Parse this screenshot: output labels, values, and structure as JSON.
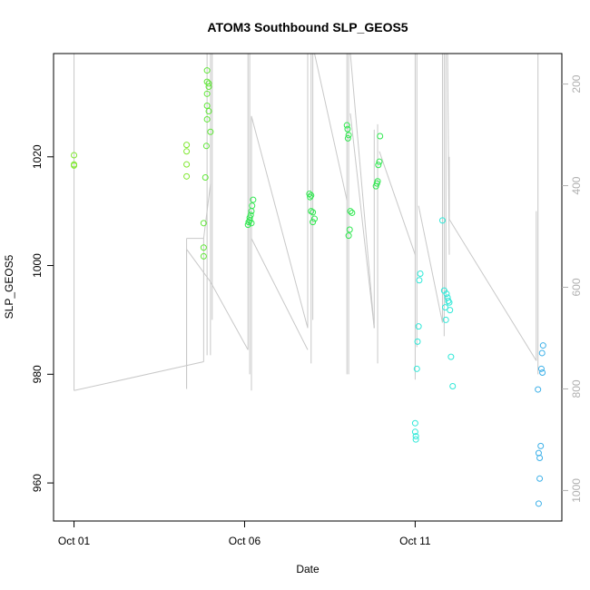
{
  "chart_data": {
    "type": "scatter",
    "title": "ATOM3 Southbound SLP_GEOS5",
    "xlabel": "Date",
    "ylabel": "SLP_GEOS5",
    "x_tick_labels": [
      "Oct 01",
      "Oct 06",
      "Oct 11"
    ],
    "x_tick_days": [
      1,
      6,
      11
    ],
    "xlim_days": [
      0.4,
      15.3
    ],
    "ylim": [
      953,
      1039
    ],
    "y_ticks": [
      960,
      980,
      1000,
      1020
    ],
    "secondary_axis": {
      "ticks": [
        200,
        400,
        600,
        800,
        1000
      ],
      "lim": [
        1060,
        140
      ],
      "color": "#b0b0b0"
    },
    "grid": false,
    "colors": {
      "altitude_trace": "#c8c8c8",
      "points_early": "#80e830",
      "points_mid": "#30e860",
      "points_late": "#30e8e8",
      "points_end": "#3cb0e8"
    },
    "series": [
      {
        "color": "#80e830",
        "points": [
          [
            1.0,
            1020.3
          ],
          [
            1.0,
            1018.6
          ],
          [
            1.0,
            1018.4
          ],
          [
            4.3,
            1022.2
          ],
          [
            4.3,
            1021.0
          ],
          [
            4.3,
            1018.6
          ],
          [
            4.3,
            1016.4
          ]
        ]
      },
      {
        "color": "#60e838",
        "points": [
          [
            4.8,
            1007.8
          ],
          [
            4.8,
            1003.3
          ],
          [
            4.8,
            1001.7
          ],
          [
            4.85,
            1016.2
          ],
          [
            4.9,
            1035.9
          ],
          [
            4.9,
            1033.8
          ],
          [
            4.95,
            1033.5
          ],
          [
            4.95,
            1032.9
          ],
          [
            4.9,
            1031.6
          ],
          [
            4.9,
            1029.4
          ],
          [
            4.95,
            1028.4
          ],
          [
            4.9,
            1026.9
          ],
          [
            5.0,
            1024.6
          ],
          [
            4.88,
            1022.0
          ]
        ]
      },
      {
        "color": "#30e850",
        "points": [
          [
            6.1,
            1007.5
          ],
          [
            6.12,
            1008.0
          ],
          [
            6.15,
            1008.8
          ],
          [
            6.18,
            1009.3
          ],
          [
            6.2,
            1010.0
          ],
          [
            6.22,
            1011.0
          ],
          [
            6.25,
            1012.1
          ],
          [
            6.2,
            1007.8
          ],
          [
            6.15,
            1008.3
          ],
          [
            7.9,
            1013.2
          ],
          [
            7.92,
            1012.6
          ],
          [
            7.95,
            1010.0
          ],
          [
            8.0,
            1009.8
          ],
          [
            8.05,
            1008.6
          ],
          [
            8.0,
            1008.0
          ],
          [
            7.95,
            1012.9
          ],
          [
            9.0,
            1025.8
          ],
          [
            9.02,
            1025.1
          ],
          [
            9.05,
            1024.0
          ],
          [
            9.03,
            1023.4
          ],
          [
            9.1,
            1010.0
          ],
          [
            9.15,
            1009.7
          ],
          [
            9.08,
            1006.6
          ],
          [
            9.05,
            1005.5
          ],
          [
            9.85,
            1014.6
          ],
          [
            9.88,
            1015.1
          ],
          [
            9.9,
            1015.5
          ],
          [
            9.92,
            1018.5
          ],
          [
            9.95,
            1019.1
          ],
          [
            9.97,
            1023.8
          ]
        ]
      },
      {
        "color": "#30e8d8",
        "points": [
          [
            11.0,
            971.0
          ],
          [
            11.0,
            969.4
          ],
          [
            11.02,
            968.6
          ],
          [
            11.02,
            968.0
          ],
          [
            11.05,
            981.0
          ],
          [
            11.07,
            986.0
          ],
          [
            11.1,
            988.8
          ],
          [
            11.12,
            997.3
          ],
          [
            11.15,
            998.5
          ],
          [
            11.8,
            1008.3
          ],
          [
            11.85,
            995.4
          ],
          [
            11.88,
            992.3
          ],
          [
            11.9,
            990.0
          ],
          [
            11.92,
            994.8
          ],
          [
            11.95,
            994.1
          ],
          [
            11.97,
            993.5
          ],
          [
            12.0,
            993.2
          ],
          [
            12.02,
            991.8
          ],
          [
            12.05,
            983.2
          ],
          [
            12.1,
            977.8
          ]
        ]
      },
      {
        "color": "#3cb0e8",
        "points": [
          [
            14.6,
            977.2
          ],
          [
            14.62,
            965.5
          ],
          [
            14.65,
            964.6
          ],
          [
            14.68,
            966.8
          ],
          [
            14.65,
            960.8
          ],
          [
            14.62,
            956.2
          ],
          [
            14.75,
            985.3
          ],
          [
            14.72,
            983.9
          ],
          [
            14.7,
            981.0
          ],
          [
            14.73,
            980.3
          ]
        ]
      }
    ],
    "trace_segments": [
      [
        [
          1.0,
          1039
        ],
        [
          1.0,
          977.0
        ]
      ],
      [
        [
          1.0,
          977.0
        ],
        [
          4.8,
          982.3
        ]
      ],
      [
        [
          4.8,
          982.3
        ],
        [
          4.8,
          1005.0
        ]
      ],
      [
        [
          4.8,
          1005.0
        ],
        [
          4.3,
          1005.0
        ]
      ],
      [
        [
          4.3,
          1005.0
        ],
        [
          4.3,
          977.3
        ]
      ],
      [
        [
          4.3,
          977.3
        ],
        [
          4.3,
          1003.0
        ]
      ],
      [
        [
          4.3,
          1003.0
        ],
        [
          5.0,
          997.0
        ]
      ],
      [
        [
          4.8,
          1005.0
        ],
        [
          5.0,
          1015.0
        ]
      ],
      [
        [
          4.9,
          983.5
        ],
        [
          4.9,
          1039
        ]
      ],
      [
        [
          5.0,
          983.5
        ],
        [
          5.0,
          1039
        ]
      ],
      [
        [
          5.05,
          990.0
        ],
        [
          5.05,
          1039
        ]
      ],
      [
        [
          5.0,
          997.0
        ],
        [
          6.1,
          984.5
        ]
      ],
      [
        [
          6.1,
          984.5
        ],
        [
          6.1,
          1039
        ]
      ],
      [
        [
          6.15,
          980.0
        ],
        [
          6.15,
          1039
        ]
      ],
      [
        [
          6.2,
          977.0
        ],
        [
          6.2,
          1027.5
        ]
      ],
      [
        [
          6.2,
          1027.5
        ],
        [
          7.85,
          988.5
        ]
      ],
      [
        [
          7.85,
          988.5
        ],
        [
          7.85,
          1039
        ]
      ],
      [
        [
          7.85,
          984.5
        ],
        [
          6.2,
          1005.0
        ]
      ],
      [
        [
          7.95,
          982.0
        ],
        [
          7.95,
          1039
        ]
      ],
      [
        [
          8.0,
          990.0
        ],
        [
          8.0,
          1039
        ]
      ],
      [
        [
          8.05,
          1039
        ],
        [
          9.0,
          1012.0
        ]
      ],
      [
        [
          9.0,
          980.0
        ],
        [
          9.0,
          1039
        ]
      ],
      [
        [
          9.05,
          980.0
        ],
        [
          9.05,
          1039
        ]
      ],
      [
        [
          9.1,
          1039
        ],
        [
          9.8,
          988.5
        ]
      ],
      [
        [
          9.1,
          1028.0
        ],
        [
          9.8,
          988.5
        ]
      ],
      [
        [
          9.8,
          988.5
        ],
        [
          9.8,
          1025.0
        ]
      ],
      [
        [
          9.9,
          982.0
        ],
        [
          9.9,
          1026.0
        ]
      ],
      [
        [
          9.95,
          1021.0
        ],
        [
          11.0,
          1002.0
        ]
      ],
      [
        [
          11.0,
          979.0
        ],
        [
          11.0,
          1039
        ]
      ],
      [
        [
          11.05,
          985.0
        ],
        [
          11.05,
          1039
        ]
      ],
      [
        [
          11.1,
          1011.0
        ],
        [
          11.8,
          989.5
        ]
      ],
      [
        [
          11.8,
          989.5
        ],
        [
          11.8,
          1039
        ]
      ],
      [
        [
          11.85,
          987.0
        ],
        [
          11.85,
          1039
        ]
      ],
      [
        [
          11.9,
          993.0
        ],
        [
          11.9,
          1039
        ]
      ],
      [
        [
          11.95,
          1039
        ],
        [
          12.0,
          1002.0
        ]
      ],
      [
        [
          12.0,
          1008.5
        ],
        [
          14.55,
          982.5
        ]
      ],
      [
        [
          14.55,
          982.5
        ],
        [
          14.55,
          1010.0
        ]
      ],
      [
        [
          14.6,
          980.0
        ],
        [
          14.6,
          1039
        ]
      ],
      [
        [
          12.0,
          1008.5
        ],
        [
          12.0,
          1020.0
        ]
      ]
    ]
  }
}
